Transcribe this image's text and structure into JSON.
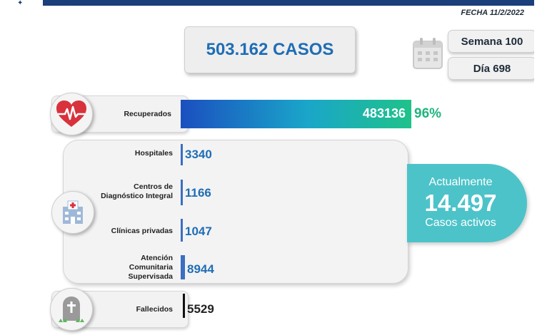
{
  "header": {
    "fecha": "FECHA 11/2/2022"
  },
  "summary": {
    "cases_label": "503.162 CASOS",
    "semana": "Semana 100",
    "dia": "Día 698"
  },
  "recuperados": {
    "label": "Recuperados",
    "value": "483136",
    "percent": "96%"
  },
  "active_breakdown": {
    "items": [
      {
        "label": "Hospitales",
        "value": "3340",
        "bar_color": "#3b6fc2"
      },
      {
        "label_lines": [
          "Centros de",
          "Diagnóstico Integral"
        ],
        "value": "1166",
        "bar_color": "#3b6fc2"
      },
      {
        "label": "Clínicas privadas",
        "value": "1047",
        "bar_color": "#3b6fc2"
      },
      {
        "label_lines": [
          "Atención",
          "Comunitaria",
          "Supervisada"
        ],
        "value": "8944",
        "bar_color": "#3b6fc2"
      }
    ]
  },
  "active_total": {
    "line1": "Actualmente",
    "value": "14.497",
    "line3": "Casos activos"
  },
  "fallecidos": {
    "label": "Fallecidos",
    "value": "5529",
    "bar_color": "#111111"
  },
  "icons": {
    "heart": "heart-pulse-icon",
    "hospital": "hospital-icon",
    "tombstone": "tombstone-icon",
    "calendar": "calendar-icon"
  },
  "colors": {
    "primary_blue": "#1f6db5",
    "recovered_green": "#1fb57e",
    "active_teal": "#4cc3c9",
    "heart_red": "#d8323c"
  }
}
